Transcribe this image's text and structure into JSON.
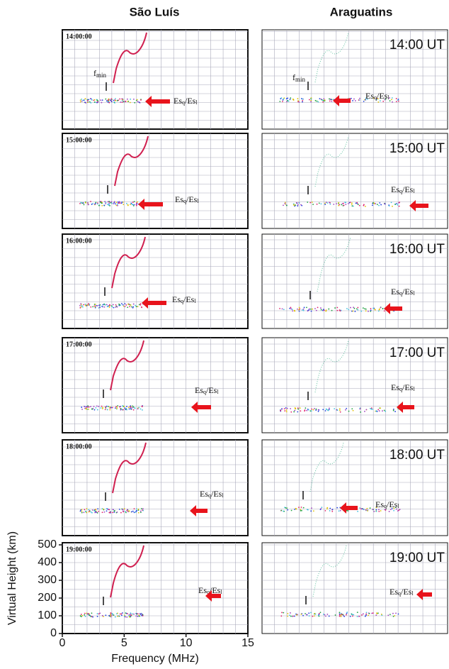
{
  "chart_data": {
    "type": "ionogram-grid",
    "columns": [
      {
        "title": "São Luís",
        "panels": [
          {
            "time": "14:00:00",
            "fmin": [
              "f",
              "min"
            ],
            "es": [
              "Es",
              "q",
              "/Es",
              "l"
            ]
          },
          {
            "time": "15:00:00",
            "es": [
              "Es",
              "q",
              "/Es",
              "l"
            ]
          },
          {
            "time": "16:00:00",
            "es": [
              "Es",
              "q",
              "/Es",
              "l"
            ]
          },
          {
            "time": "17:00:00",
            "es": [
              "Es",
              "q",
              "/Es",
              "l"
            ]
          },
          {
            "time": "18:00:00",
            "es": [
              "Es",
              "q",
              "/Es",
              "l"
            ]
          },
          {
            "time": "19:00:00",
            "es": [
              "Es",
              "q",
              "/Es",
              "l"
            ]
          }
        ]
      },
      {
        "title": "Araguatins",
        "panels": [
          {
            "time": "14:00 UT",
            "fmin": [
              "f",
              "min"
            ],
            "es": [
              "Es",
              "q",
              "/Es",
              "l"
            ]
          },
          {
            "time": "15:00 UT",
            "es": [
              "Es",
              "q",
              "/Es",
              "l"
            ]
          },
          {
            "time": "16:00 UT",
            "es": [
              "Es",
              "q",
              "/Es",
              "l"
            ]
          },
          {
            "time": "17:00 UT",
            "es": [
              "Es",
              "q",
              "/Es",
              "l"
            ]
          },
          {
            "time": "18:00 UT",
            "es": [
              "Es",
              "q",
              "/Es",
              "l"
            ]
          },
          {
            "time": "19:00 UT",
            "es": [
              "Es",
              "q",
              "/Es",
              "l"
            ]
          }
        ]
      }
    ],
    "xlabel": "Frequency (MHz)",
    "ylabel": "Virtual Height (km)",
    "xlim": [
      0,
      15
    ],
    "xticks": [
      0,
      5,
      10,
      15
    ],
    "ylim": [
      0,
      500
    ],
    "yticks": [
      0,
      100,
      200,
      300,
      400,
      500
    ]
  }
}
